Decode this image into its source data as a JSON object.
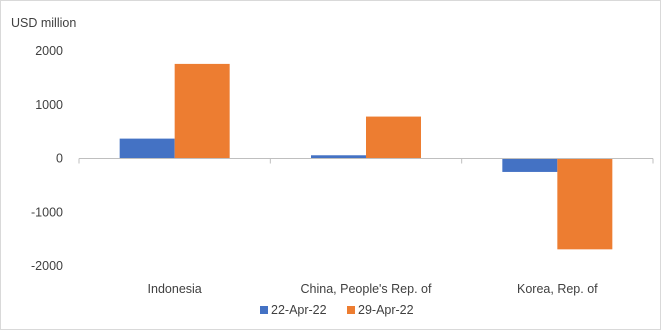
{
  "chart_data": {
    "type": "bar",
    "ylabel": "USD million",
    "categories": [
      "Indonesia",
      "China, People's Rep. of",
      "Korea, Rep. of"
    ],
    "series": [
      {
        "name": "22-Apr-22",
        "color": "#4472c4",
        "values": [
          370,
          60,
          -250
        ]
      },
      {
        "name": "29-Apr-22",
        "color": "#ed7d31",
        "values": [
          1760,
          780,
          -1690
        ]
      }
    ],
    "ylim": [
      -2000,
      2000
    ],
    "yticks": [
      2000,
      1000,
      0,
      -1000,
      -2000
    ],
    "ytick_labels": [
      "2000",
      "1000",
      "0",
      "-1000",
      "-2000"
    ],
    "grid": false,
    "legend": "bottom"
  }
}
